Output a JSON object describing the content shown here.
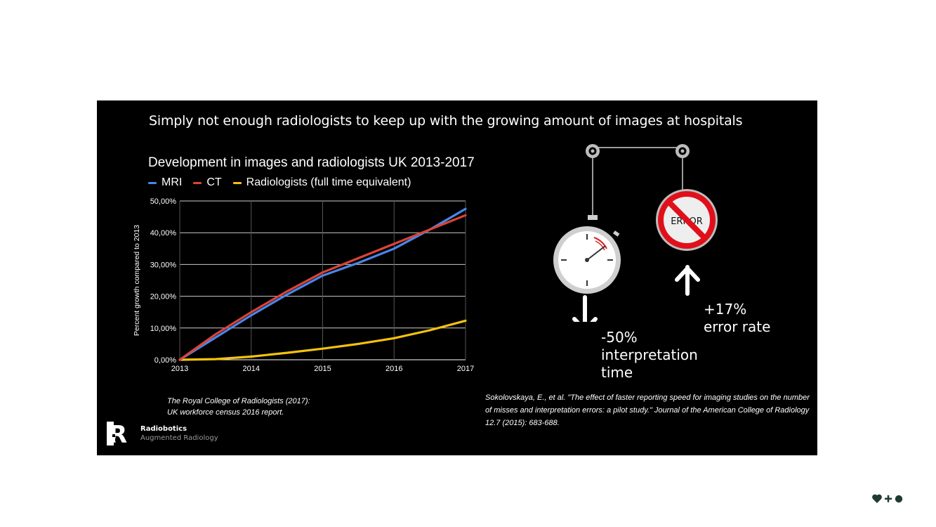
{
  "slide": {
    "headline": "Simply not enough radiologists to keep up with the growing amount of images at hospitals"
  },
  "chart_data": {
    "type": "line",
    "title": "Development in images and radiologists UK 2013-2017",
    "ylabel": "Percent growth compared to 2013",
    "xlabel": "",
    "x": [
      2013,
      2013.5,
      2014,
      2014.5,
      2015,
      2015.5,
      2016,
      2016.5,
      2017
    ],
    "x_ticks": [
      "2013",
      "2014",
      "2015",
      "2016",
      "2017"
    ],
    "y_ticks": [
      "0,00%",
      "10,00%",
      "20,00%",
      "30,00%",
      "40,00%",
      "50,00%"
    ],
    "ylim": [
      0,
      50
    ],
    "grid": true,
    "legend_position": "top",
    "series": [
      {
        "name": "MRI",
        "color": "#4a86e8",
        "values": [
          0,
          7,
          14,
          20.5,
          26.5,
          30.5,
          35,
          41,
          47.5
        ]
      },
      {
        "name": "CT",
        "color": "#db4437",
        "values": [
          0,
          8,
          15,
          21.5,
          27.5,
          32,
          36.5,
          41,
          45.5
        ]
      },
      {
        "name": "Radiologists (full time equivalent)",
        "color": "#f4c20d",
        "values": [
          0,
          0.2,
          1,
          2.2,
          3.5,
          5,
          6.8,
          9.3,
          12.3
        ]
      }
    ]
  },
  "citations": {
    "left_line1": "The Royal College of Radiologists (2017):",
    "left_line2": "UK workforce census 2016 report.",
    "right": "Sokolovskaya, E., et al. \"The effect of faster reporting speed for imaging studies on the number of misses and interpretation errors: a pilot study.\" Journal of the American College of Radiology 12.7 (2015): 683-688."
  },
  "stats": {
    "time_value": "-50%",
    "time_label1": "interpretation",
    "time_label2": "time",
    "error_value": "+17%",
    "error_label": "error rate",
    "error_sign_text": "ERROR"
  },
  "brand": {
    "name": "Radiobotics",
    "tagline": "Augmented Radiology",
    "logo_letter": "R"
  },
  "icons": {
    "stopwatch": "stopwatch-icon",
    "no_error": "no-error-sign-icon",
    "arrow_down": "arrow-down-icon",
    "arrow_up": "arrow-up-icon",
    "corner": "heart-plus-dot-icon"
  },
  "colors": {
    "slide_bg": "#000000",
    "page_bg": "#ffffff",
    "error_red": "#e0101a",
    "corner_mark": "#1f3b34"
  }
}
